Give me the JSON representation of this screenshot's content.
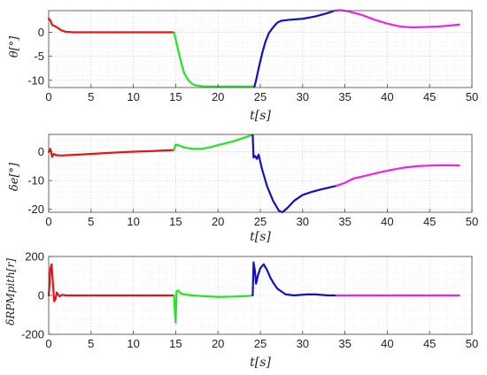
{
  "chart_data": [
    {
      "type": "line",
      "title": "",
      "ylabel": "θ[°]",
      "xlabel": "t[s]",
      "xlim": [
        0,
        50
      ],
      "ylim": [
        -11.5,
        4.5
      ],
      "xticks": [
        0,
        5,
        10,
        15,
        20,
        25,
        30,
        35,
        40,
        45,
        50
      ],
      "yticks": [
        -10,
        -5,
        0
      ],
      "grid": true,
      "series": [
        {
          "color": "#e81414",
          "x": [
            0,
            0.2,
            0.4,
            0.7,
            1.0,
            1.5,
            2.0,
            3.0,
            5.0,
            8.0,
            11.0,
            14.5,
            14.8
          ],
          "y": [
            2.8,
            2.5,
            1.5,
            1.3,
            1.0,
            0.4,
            0.1,
            0.0,
            0.0,
            0.0,
            0.0,
            0.0,
            0.0
          ]
        },
        {
          "color": "#22e622",
          "x": [
            14.8,
            15.2,
            15.6,
            16.0,
            16.5,
            17.0,
            17.5,
            18.5,
            20.0,
            22.0,
            24.0,
            24.3
          ],
          "y": [
            0.0,
            -3.0,
            -6.0,
            -8.5,
            -10.0,
            -10.8,
            -11.1,
            -11.3,
            -11.3,
            -11.3,
            -11.3,
            -11.3
          ]
        },
        {
          "color": "#1010cc",
          "x": [
            24.3,
            24.5,
            24.8,
            25.2,
            25.6,
            26.0,
            26.5,
            27.0,
            27.5,
            28.5,
            30.0,
            31.5,
            33.0,
            33.8
          ],
          "y": [
            -11.3,
            -10.0,
            -7.5,
            -4.5,
            -2.0,
            -0.2,
            1.0,
            2.0,
            2.4,
            2.6,
            2.8,
            3.3,
            4.0,
            4.5
          ]
        },
        {
          "color": "#ee22ee",
          "x": [
            33.8,
            34.5,
            35.5,
            37.0,
            38.5,
            40.0,
            41.5,
            43.0,
            44.5,
            46.0,
            47.5,
            48.5
          ],
          "y": [
            4.5,
            4.6,
            4.3,
            3.6,
            2.6,
            1.8,
            1.2,
            1.0,
            1.1,
            1.2,
            1.4,
            1.6
          ]
        }
      ]
    },
    {
      "type": "line",
      "title": "",
      "ylabel": "δe[°]",
      "xlabel": "t[s]",
      "xlim": [
        0,
        50
      ],
      "ylim": [
        -21,
        6
      ],
      "xticks": [
        0,
        5,
        10,
        15,
        20,
        25,
        30,
        35,
        40,
        45,
        50
      ],
      "yticks": [
        -20,
        -10,
        0
      ],
      "grid": true,
      "series": [
        {
          "color": "#e81414",
          "x": [
            0,
            0.2,
            0.4,
            0.6,
            0.9,
            1.5,
            3.0,
            6.0,
            9.0,
            12.0,
            14.8
          ],
          "y": [
            0,
            1.0,
            -1.8,
            -0.8,
            -1.2,
            -1.3,
            -1.1,
            -0.6,
            -0.1,
            0.2,
            0.6
          ]
        },
        {
          "color": "#22e622",
          "x": [
            14.8,
            15.0,
            15.3,
            16.0,
            17.0,
            18.0,
            19.0,
            20.0,
            21.0,
            22.0,
            23.0,
            24.0,
            24.1
          ],
          "y": [
            0.6,
            2.5,
            2.3,
            1.5,
            1.0,
            1.0,
            1.5,
            2.3,
            3.0,
            3.8,
            4.8,
            5.8,
            5.8
          ]
        },
        {
          "color": "#1010cc",
          "x": [
            24.1,
            24.2,
            24.4,
            24.6,
            24.8,
            25.2,
            25.8,
            26.5,
            27.2,
            27.6,
            28.2,
            29.0,
            30.0,
            31.0,
            32.0,
            33.0,
            34.0
          ],
          "y": [
            5.8,
            -2.0,
            -1.5,
            -2.5,
            -1.0,
            -6.0,
            -12.0,
            -17.0,
            -20.5,
            -21.0,
            -19.5,
            -17.0,
            -15.0,
            -14.0,
            -13.2,
            -12.5,
            -11.8
          ]
        },
        {
          "color": "#ee22ee",
          "x": [
            34.0,
            35.0,
            36.0,
            37.5,
            39.0,
            40.5,
            42.0,
            43.5,
            45.0,
            46.5,
            47.5,
            48.5
          ],
          "y": [
            -11.8,
            -10.8,
            -9.3,
            -8.3,
            -7.2,
            -6.3,
            -5.5,
            -5.0,
            -4.8,
            -4.7,
            -4.7,
            -4.8
          ]
        }
      ]
    },
    {
      "type": "line",
      "title": "",
      "ylabel": "δRPMpith[r]",
      "xlabel": "t[s]",
      "xlim": [
        0,
        50
      ],
      "ylim": [
        -200,
        200
      ],
      "xticks": [
        0,
        5,
        10,
        15,
        20,
        25,
        30,
        35,
        40,
        45,
        50
      ],
      "yticks": [
        -200,
        0,
        200
      ],
      "grid": true,
      "series": [
        {
          "color": "#e81414",
          "x": [
            0,
            0.1,
            0.2,
            0.35,
            0.5,
            0.65,
            0.8,
            0.95,
            1.1,
            1.3,
            1.6,
            2.0,
            3.0,
            6.0,
            10.0,
            14.5,
            14.8
          ],
          "y": [
            0,
            60,
            140,
            160,
            60,
            -30,
            -20,
            15,
            5,
            -5,
            3,
            0,
            0,
            0,
            0,
            0,
            0
          ]
        },
        {
          "color": "#22e622",
          "x": [
            14.8,
            14.9,
            15.0,
            15.1,
            15.3,
            15.6,
            16.0,
            17.0,
            18.0,
            20.0,
            22.0,
            23.5,
            24.1
          ],
          "y": [
            0,
            -80,
            -140,
            20,
            25,
            10,
            5,
            0,
            -3,
            -8,
            -6,
            -3,
            0
          ]
        },
        {
          "color": "#1010cc",
          "x": [
            24.1,
            24.2,
            24.35,
            24.5,
            24.7,
            25.0,
            25.4,
            25.8,
            26.2,
            26.6,
            27.0,
            27.5,
            28.0,
            29.0,
            30.5,
            31.5,
            33.0,
            34.0
          ],
          "y": [
            0,
            170,
            130,
            60,
            100,
            140,
            160,
            130,
            90,
            60,
            35,
            20,
            5,
            0,
            5,
            5,
            0,
            0
          ]
        },
        {
          "color": "#ee22ee",
          "x": [
            34.0,
            36.0,
            40.0,
            44.0,
            48.5
          ],
          "y": [
            0,
            0,
            0,
            0,
            0
          ]
        }
      ]
    }
  ],
  "colors": {
    "red": "#e81414",
    "green": "#22e622",
    "blue": "#1010cc",
    "magenta": "#ee22ee"
  }
}
